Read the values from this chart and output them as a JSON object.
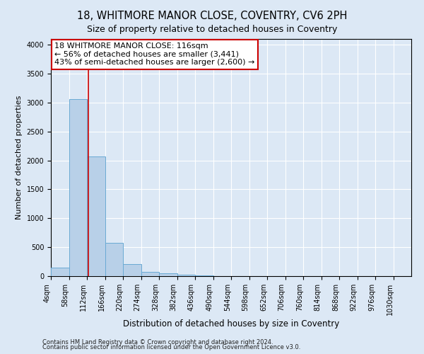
{
  "title": "18, WHITMORE MANOR CLOSE, COVENTRY, CV6 2PH",
  "subtitle": "Size of property relative to detached houses in Coventry",
  "xlabel": "Distribution of detached houses by size in Coventry",
  "ylabel": "Number of detached properties",
  "bin_edges": [
    4,
    58,
    112,
    166,
    220,
    274,
    328,
    382,
    436,
    490,
    544,
    598,
    652,
    706,
    760,
    814,
    868,
    922,
    976,
    1030,
    1084
  ],
  "bar_heights": [
    150,
    3060,
    2070,
    570,
    205,
    75,
    55,
    25,
    8,
    0,
    0,
    0,
    0,
    0,
    0,
    0,
    0,
    0,
    0,
    0
  ],
  "bar_color": "#b8d0e8",
  "bar_edge_color": "#6aaad4",
  "property_size": 116,
  "red_line_color": "#cc0000",
  "annotation_line1": "18 WHITMORE MANOR CLOSE: 116sqm",
  "annotation_line2": "← 56% of detached houses are smaller (3,441)",
  "annotation_line3": "43% of semi-detached houses are larger (2,600) →",
  "annotation_box_color": "#ffffff",
  "annotation_box_edge_color": "#cc0000",
  "ylim": [
    0,
    4100
  ],
  "footnote1": "Contains HM Land Registry data © Crown copyright and database right 2024.",
  "footnote2": "Contains public sector information licensed under the Open Government Licence v3.0.",
  "background_color": "#dce8f5",
  "grid_color": "#ffffff",
  "title_fontsize": 10.5,
  "subtitle_fontsize": 9,
  "ylabel_fontsize": 8,
  "xlabel_fontsize": 8.5,
  "tick_fontsize": 7,
  "annotation_fontsize": 8,
  "footnote_fontsize": 6
}
